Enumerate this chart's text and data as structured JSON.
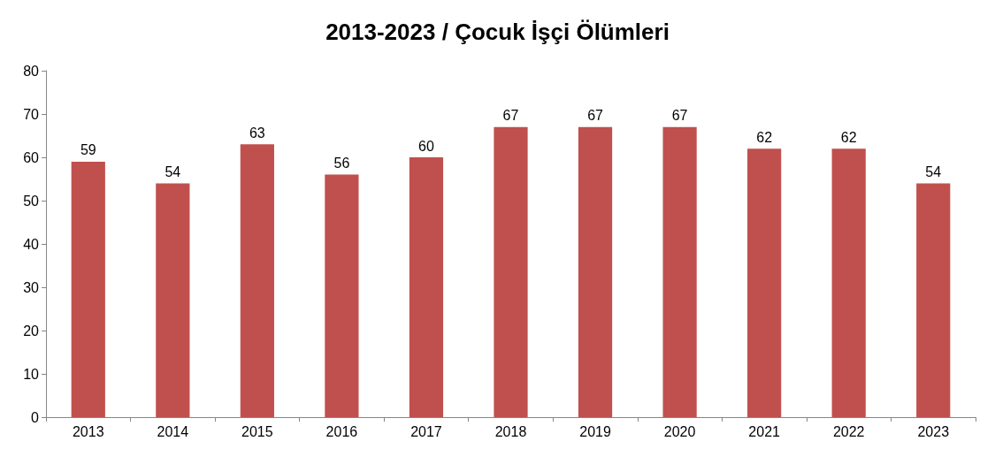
{
  "chart_data": {
    "type": "bar",
    "title": "2013-2023 / Çocuk İşçi Ölümleri",
    "categories": [
      "2013",
      "2014",
      "2015",
      "2016",
      "2017",
      "2018",
      "2019",
      "2020",
      "2021",
      "2022",
      "2023"
    ],
    "values": [
      59,
      54,
      63,
      56,
      60,
      67,
      67,
      67,
      62,
      62,
      54
    ],
    "color": "#c0504d",
    "ylim": [
      0,
      80
    ],
    "yticks": [
      0,
      10,
      20,
      30,
      40,
      50,
      60,
      70,
      80
    ],
    "grid": false,
    "data_labels": true
  }
}
